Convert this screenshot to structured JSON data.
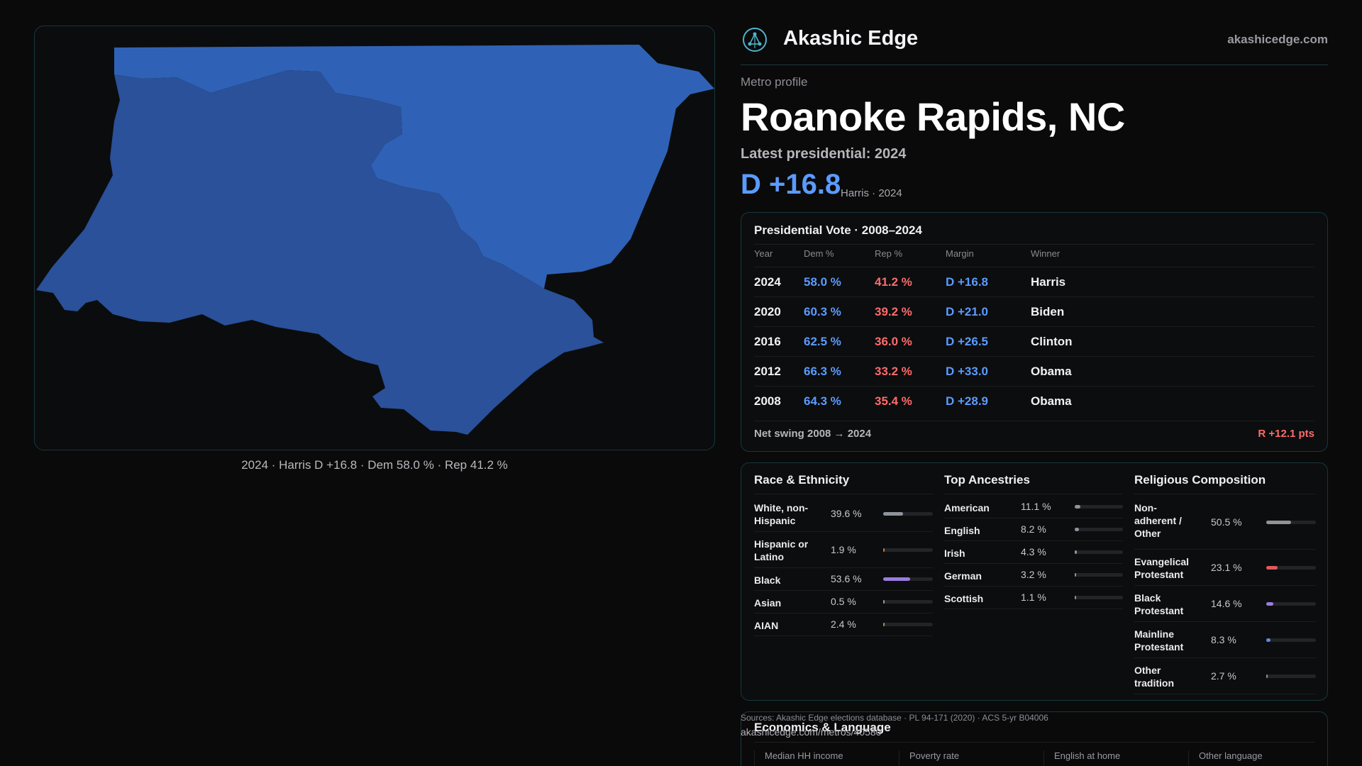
{
  "map": {
    "caption": "2024 · Harris D +16.8 · Dem 58.0 % · Rep 41.2 %",
    "colors": {
      "north_county": "#2f62b6",
      "south_county": "#2a5199"
    }
  },
  "brand": {
    "name": "Akashic Edge",
    "url": "akashicedge.com",
    "logo_icon": "atom-network-icon"
  },
  "profile": {
    "eyebrow": "Metro profile",
    "title": "Roanoke Rapids, NC",
    "latest_label": "Latest presidential: 2024",
    "headline_margin": "D +16.8",
    "headline_sub": "Harris · 2024"
  },
  "vote_table": {
    "title": "Presidential Vote · 2008–2024",
    "headers": {
      "year": "Year",
      "dem": "Dem %",
      "rep": "Rep %",
      "margin": "Margin",
      "winner": "Winner"
    },
    "rows": [
      {
        "year": "2024",
        "dem": "58.0 %",
        "rep": "41.2 %",
        "margin": "D +16.8",
        "winner": "Harris"
      },
      {
        "year": "2020",
        "dem": "60.3 %",
        "rep": "39.2 %",
        "margin": "D +21.0",
        "winner": "Biden"
      },
      {
        "year": "2016",
        "dem": "62.5 %",
        "rep": "36.0 %",
        "margin": "D +26.5",
        "winner": "Clinton"
      },
      {
        "year": "2012",
        "dem": "66.3 %",
        "rep": "33.2 %",
        "margin": "D +33.0",
        "winner": "Obama"
      },
      {
        "year": "2008",
        "dem": "64.3 %",
        "rep": "35.4 %",
        "margin": "D +28.9",
        "winner": "Obama"
      }
    ],
    "swing_label": "Net swing 2008 → 2024",
    "swing_value": "R +12.1 pts"
  },
  "race": {
    "title": "Race & Ethnicity",
    "items": [
      {
        "label": "White, non-Hispanic",
        "value": "39.6 %",
        "pct": 39.6,
        "color": "#8f949c"
      },
      {
        "label": "Hispanic or Latino",
        "value": "1.9 %",
        "pct": 1.9,
        "color": "#c7793b"
      },
      {
        "label": "Black",
        "value": "53.6 %",
        "pct": 53.6,
        "color": "#9a7be0"
      },
      {
        "label": "Asian",
        "value": "0.5 %",
        "pct": 0.5,
        "color": "#6bb0a8"
      },
      {
        "label": "AIAN",
        "value": "2.4 %",
        "pct": 2.4,
        "color": "#b08a5a"
      }
    ]
  },
  "ancestry": {
    "title": "Top Ancestries",
    "items": [
      {
        "label": "American",
        "value": "11.1 %",
        "pct": 11.1,
        "color": "#8f949c"
      },
      {
        "label": "English",
        "value": "8.2 %",
        "pct": 8.2,
        "color": "#8f949c"
      },
      {
        "label": "Irish",
        "value": "4.3 %",
        "pct": 4.3,
        "color": "#8f949c"
      },
      {
        "label": "German",
        "value": "3.2 %",
        "pct": 3.2,
        "color": "#8f949c"
      },
      {
        "label": "Scottish",
        "value": "1.1 %",
        "pct": 1.1,
        "color": "#8f949c"
      }
    ]
  },
  "religion": {
    "title": "Religious Composition",
    "items": [
      {
        "label": "Non-adherent / Other",
        "value": "50.5 %",
        "pct": 50.5,
        "color": "#8f949c"
      },
      {
        "label": "Evangelical Protestant",
        "value": "23.1 %",
        "pct": 23.1,
        "color": "#e05a5a"
      },
      {
        "label": "Black Protestant",
        "value": "14.6 %",
        "pct": 14.6,
        "color": "#9a7be0"
      },
      {
        "label": "Mainline Protestant",
        "value": "8.3 %",
        "pct": 8.3,
        "color": "#5b8fe0"
      },
      {
        "label": "Other tradition",
        "value": "2.7 %",
        "pct": 2.7,
        "color": "#8f949c"
      }
    ]
  },
  "economics": {
    "title": "Economics & Language",
    "stats": [
      "Median HH income",
      "Poverty rate",
      "English at home",
      "Other language"
    ]
  },
  "footer": {
    "sources": "Sources: Akashic Edge elections database · PL 94-171 (2020) · ACS 5-yr B04006",
    "metro_url": "akashicedge.com/metros/40580"
  }
}
